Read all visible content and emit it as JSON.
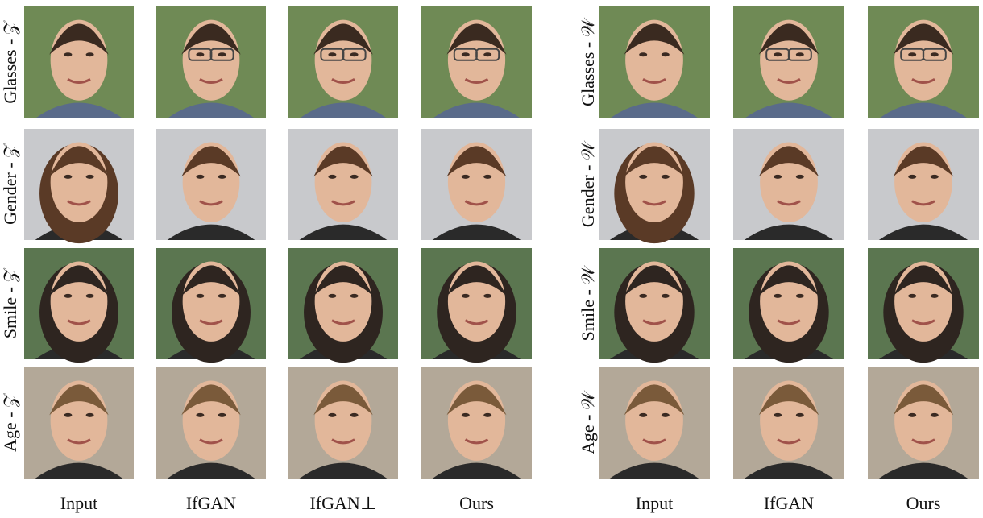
{
  "left_panel": {
    "rows": [
      "Glasses - 𝒵",
      "Gender - 𝒵",
      "Smile - 𝒵",
      "Age - 𝒵"
    ],
    "columns": [
      "Input",
      "IfGAN",
      "IfGAN⊥",
      "Ours"
    ]
  },
  "right_panel": {
    "rows": [
      "Glasses - 𝒲",
      "Gender - 𝒲",
      "Smile - 𝒲",
      "Age - 𝒲"
    ],
    "columns": [
      "Input",
      "IfGAN",
      "Ours"
    ]
  }
}
